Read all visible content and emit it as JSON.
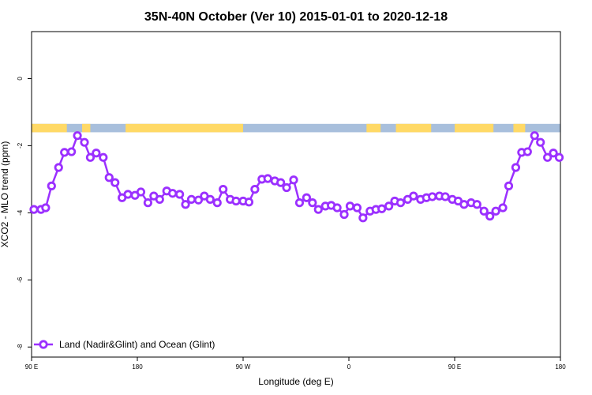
{
  "chart_data": {
    "type": "line",
    "title": "35N-40N October (Ver 10)   2015-01-01 to 2020-12-18",
    "xlabel": "Longitude (deg E)",
    "ylabel": "XCO2 - MLO trend (ppm)",
    "xlim": [
      90,
      540
    ],
    "ylim": [
      -8.3,
      1.4
    ],
    "x_ticks": [
      {
        "value": 90,
        "label": "90 E"
      },
      {
        "value": 180,
        "label": "180"
      },
      {
        "value": 270,
        "label": "90 W"
      },
      {
        "value": 360,
        "label": "0"
      },
      {
        "value": 450,
        "label": "90 E"
      },
      {
        "value": 540,
        "label": "180"
      }
    ],
    "y_ticks": [
      {
        "value": 0,
        "label": "0"
      },
      {
        "value": -2,
        "label": "-2"
      },
      {
        "value": -4,
        "label": "-4"
      },
      {
        "value": -6,
        "label": "-6"
      },
      {
        "value": -8,
        "label": "-8"
      }
    ],
    "series": [
      {
        "name": "Land (Nadir&Glint) and Ocean (Glint)",
        "color": "#9b30ff",
        "x": [
          92,
          98,
          102,
          107,
          113,
          118,
          124,
          129,
          135,
          140,
          145,
          151,
          156,
          161,
          167,
          172,
          178,
          183,
          189,
          194,
          199,
          205,
          210,
          216,
          221,
          226,
          232,
          237,
          242,
          248,
          253,
          259,
          264,
          270,
          275,
          280,
          286,
          291,
          297,
          302,
          307,
          313,
          318,
          324,
          329,
          334,
          340,
          345,
          350,
          356,
          361,
          367,
          372,
          378,
          383,
          388,
          394,
          399,
          404,
          410,
          415,
          421,
          426,
          431,
          437,
          442,
          448,
          453,
          458,
          464,
          469,
          475,
          480,
          485,
          491,
          496,
          502,
          507,
          512,
          518,
          523,
          529,
          534,
          539
        ],
        "y": [
          -3.9,
          -3.9,
          -3.85,
          -3.2,
          -2.65,
          -2.2,
          -2.18,
          -1.7,
          -1.9,
          -2.35,
          -2.22,
          -2.35,
          -2.95,
          -3.1,
          -3.55,
          -3.45,
          -3.48,
          -3.38,
          -3.7,
          -3.5,
          -3.6,
          -3.35,
          -3.42,
          -3.45,
          -3.75,
          -3.6,
          -3.62,
          -3.5,
          -3.6,
          -3.7,
          -3.3,
          -3.6,
          -3.65,
          -3.65,
          -3.68,
          -3.3,
          -3.0,
          -2.98,
          -3.05,
          -3.1,
          -3.25,
          -3.02,
          -3.7,
          -3.55,
          -3.7,
          -3.9,
          -3.8,
          -3.78,
          -3.85,
          -4.05,
          -3.8,
          -3.85,
          -4.15,
          -3.95,
          -3.9,
          -3.88,
          -3.8,
          -3.65,
          -3.7,
          -3.6,
          -3.5,
          -3.6,
          -3.55,
          -3.52,
          -3.5,
          -3.52,
          -3.6,
          -3.65,
          -3.75,
          -3.7,
          -3.75,
          -3.95,
          -4.1,
          -3.95,
          -3.85,
          -3.2,
          -2.65,
          -2.2,
          -2.18,
          -1.7,
          -1.9,
          -2.35,
          -2.22,
          -2.35
        ]
      }
    ],
    "land_ocean_strip": {
      "y_range": [
        -1.6,
        -1.35
      ],
      "land_color": "#ffd966",
      "ocean_color": "#a8bfdc",
      "land_segments": [
        [
          90,
          120
        ],
        [
          133,
          140
        ],
        [
          170,
          270
        ],
        [
          375,
          387
        ],
        [
          400,
          430
        ],
        [
          450,
          483
        ],
        [
          500,
          510
        ]
      ]
    },
    "legend": {
      "position": "bottom-left"
    },
    "grid": false
  }
}
